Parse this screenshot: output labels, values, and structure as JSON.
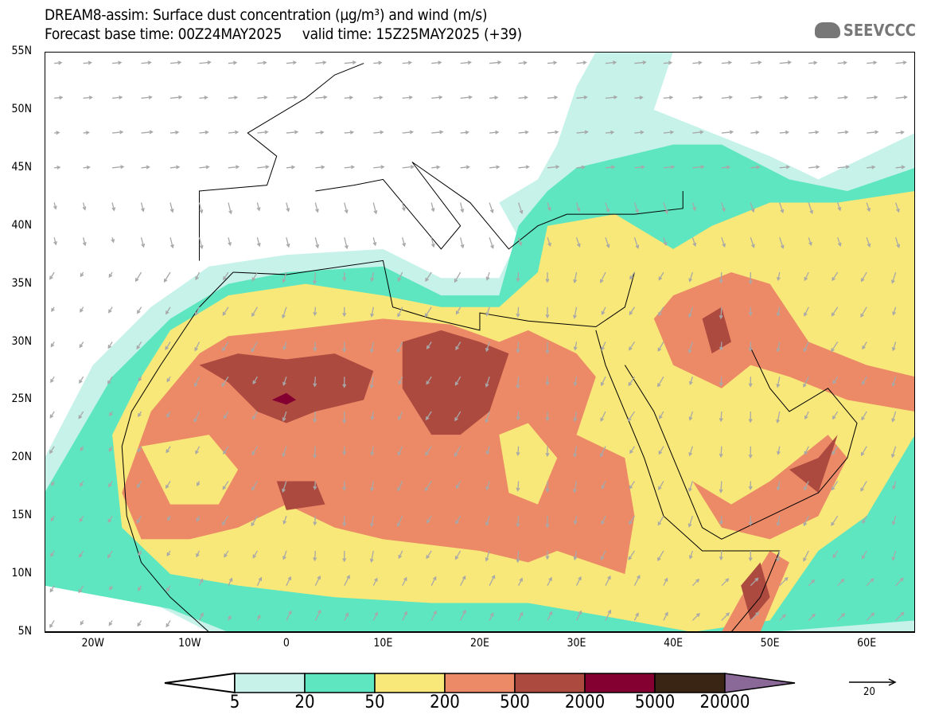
{
  "header": {
    "title": "DREAM8-assim: Surface dust concentration (µg/m³) and wind (m/s)",
    "subtitle": "Forecast base time: 00Z24MAY2025     valid time: 15Z25MAY2025 (+39)",
    "logo": "SEEVCCC"
  },
  "axes": {
    "lat_labels": [
      "55N",
      "50N",
      "45N",
      "40N",
      "35N",
      "30N",
      "25N",
      "20N",
      "15N",
      "10N",
      "5N"
    ],
    "lon_labels": [
      "20W",
      "10W",
      "0",
      "10E",
      "20E",
      "30E",
      "40E",
      "50E",
      "60E"
    ]
  },
  "legend": {
    "levels": [
      "5",
      "20",
      "50",
      "200",
      "500",
      "2000",
      "5000",
      "20000"
    ],
    "colors": [
      "#c6f2ea",
      "#5ee6c0",
      "#f8e87a",
      "#ec8a68",
      "#ac4a40",
      "#840030",
      "#3a2414",
      "#8a6898"
    ],
    "wind_ref_label": "20"
  },
  "colors": {
    "arrow": "#a8a8a8",
    "border": "#000000"
  }
}
